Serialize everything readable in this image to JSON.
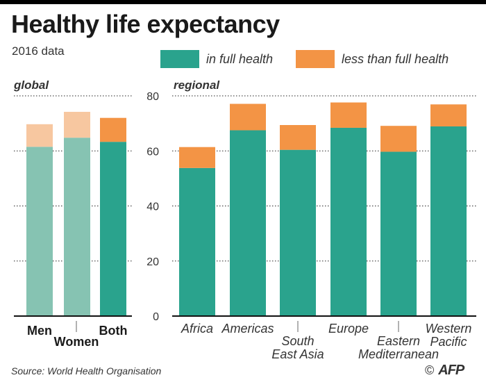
{
  "header": {
    "title": "Healthy life expectancy",
    "subtitle": "2016 data"
  },
  "legend": {
    "full_health": "in full health",
    "less_than_full": "less than full health"
  },
  "colors": {
    "full": "#2aa38d",
    "less": "#f39445",
    "full_faded": "#86c3b2",
    "less_faded": "#f7c7a0",
    "gridline": "#222222"
  },
  "chart_data": [
    {
      "type": "bar",
      "stacked": true,
      "panel_label": "global",
      "categories": [
        "Men",
        "Women",
        "Both"
      ],
      "series": [
        {
          "name": "in full health",
          "values": [
            61.5,
            64.8,
            63.3
          ]
        },
        {
          "name": "less than full health",
          "values": [
            8.2,
            9.4,
            8.7
          ]
        }
      ],
      "ylim": [
        0,
        80
      ]
    },
    {
      "type": "bar",
      "stacked": true,
      "panel_label": "regional",
      "categories": [
        "Africa",
        "Americas",
        "South East Asia",
        "Europe",
        "Eastern Mediterranean",
        "Western Pacific"
      ],
      "category_label_lines": [
        [
          "Africa"
        ],
        [
          "Americas"
        ],
        [
          "South",
          "East Asia"
        ],
        [
          "Europe"
        ],
        [
          "Eastern",
          "Mediterranean"
        ],
        [
          "Western",
          "Pacific"
        ]
      ],
      "series": [
        {
          "name": "in full health",
          "values": [
            53.8,
            67.5,
            60.4,
            68.4,
            59.7,
            68.9
          ]
        },
        {
          "name": "less than full health",
          "values": [
            7.6,
            9.6,
            9.0,
            9.2,
            9.4,
            8.0
          ]
        }
      ],
      "ylim": [
        0,
        80
      ],
      "yticks": [
        0,
        20,
        40,
        60,
        80
      ]
    }
  ],
  "footer": {
    "source": "Source: World Health Organisation",
    "copyright": "©",
    "logo": "AFP"
  }
}
